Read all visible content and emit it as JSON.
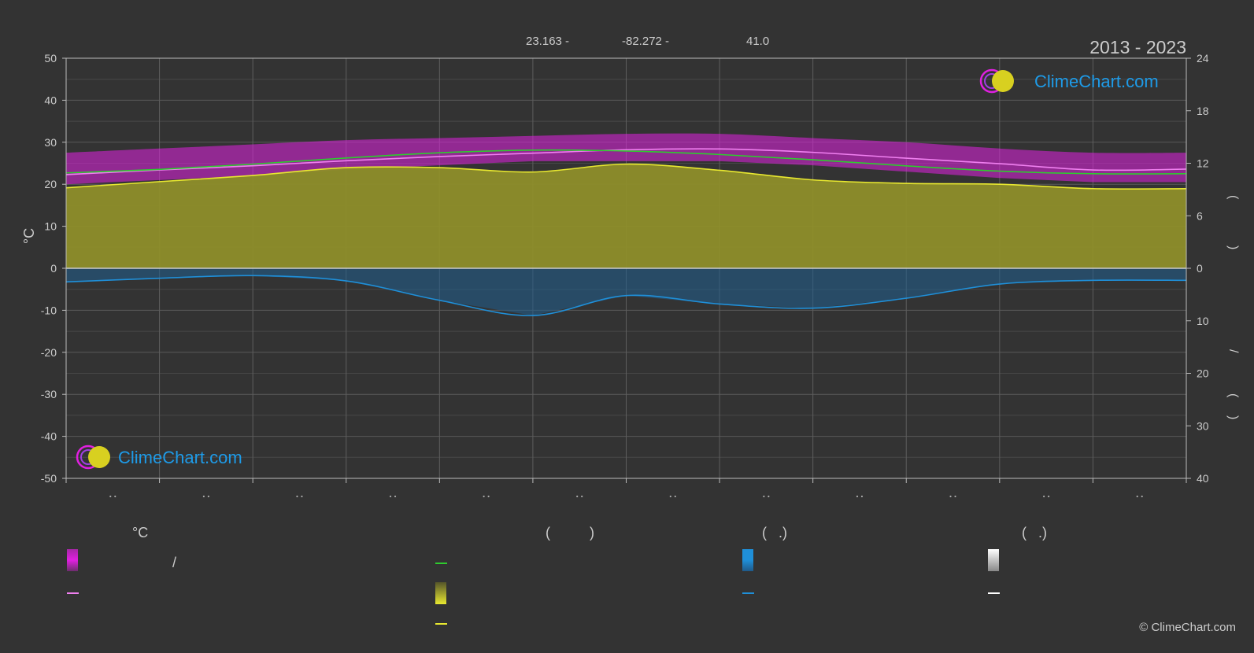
{
  "header": {
    "lat": "23.163 -",
    "lon": "-82.272 -",
    "elev": "41.0",
    "years": "2013 - 2023"
  },
  "brand": {
    "logo_text": "ClimeChart.com",
    "copyright": "© ClimeChart.com"
  },
  "colors": {
    "background": "#333333",
    "temp_range": "#e020e0",
    "avg_max": "#f080f0",
    "daylight": "#2ecc2e",
    "sunshine_fill": "#8e8e2a",
    "sunshine_line": "#e8e830",
    "precip": "#1f8fd8",
    "snow": "#ffffff",
    "brand_blue": "#1e9be8"
  },
  "chart_data": {
    "type": "line",
    "x_categories_count": 12,
    "axis_left": {
      "label": "°C",
      "ticks": [
        50,
        40,
        30,
        20,
        10,
        0,
        -10,
        -20,
        -30,
        -40,
        -50
      ],
      "range": [
        -50,
        50
      ]
    },
    "axis_right_top": {
      "ticks": [
        24,
        18,
        12,
        6,
        0
      ],
      "range": [
        0,
        24
      ]
    },
    "axis_right_bottom": {
      "ticks": [
        0,
        10,
        20,
        30,
        40
      ],
      "range": [
        0,
        40
      ]
    },
    "series": [
      {
        "key": "avg_max",
        "x": [
          0,
          1,
          2,
          3,
          4,
          5,
          6,
          7,
          8,
          9,
          10,
          11,
          12
        ],
        "values": [
          22.3,
          23.4,
          24.4,
          25.6,
          26.6,
          27.4,
          28.2,
          28.4,
          27.6,
          26.2,
          24.9,
          23.4,
          23.6
        ]
      },
      {
        "key": "daylight",
        "x": [
          0,
          1,
          2,
          3,
          4,
          5,
          6,
          7,
          8,
          9,
          10,
          11,
          12
        ],
        "values": [
          10.9,
          11.3,
          11.9,
          12.6,
          13.2,
          13.5,
          13.4,
          13.0,
          12.4,
          11.7,
          11.1,
          10.8,
          10.8
        ]
      },
      {
        "key": "sunshine",
        "x": [
          0,
          1,
          2,
          3,
          4,
          5,
          6,
          7,
          8,
          9,
          10,
          11,
          12
        ],
        "values": [
          9.2,
          9.9,
          10.6,
          11.5,
          11.5,
          11.0,
          11.9,
          11.2,
          10.1,
          9.7,
          9.6,
          9.1,
          9.1
        ]
      },
      {
        "key": "precip",
        "x": [
          0,
          1,
          2,
          3,
          4,
          5,
          6,
          7,
          8,
          9,
          10,
          11,
          12
        ],
        "values": [
          2.6,
          1.9,
          1.4,
          2.4,
          6.1,
          9.0,
          5.2,
          6.8,
          7.6,
          5.7,
          3.0,
          2.3,
          2.3
        ]
      }
    ],
    "temp_band": {
      "upper": [
        27.5,
        28.5,
        29.5,
        30.5,
        31,
        31.5,
        32,
        32,
        31,
        30,
        28.5,
        27.5,
        27.5
      ],
      "lower": [
        20,
        21,
        22,
        23.5,
        24.5,
        25.5,
        25.5,
        25.5,
        24.5,
        23,
        21.5,
        20.5,
        20.5
      ]
    }
  },
  "legend": {
    "sections": [
      {
        "title": "°C"
      },
      {
        "title": "(          )"
      },
      {
        "title": "(   .)"
      },
      {
        "title": "(   .)"
      }
    ],
    "slash_label": "/"
  }
}
